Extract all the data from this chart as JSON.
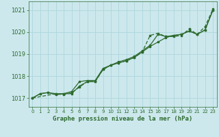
{
  "title": "Graphe pression niveau de la mer (hPa)",
  "bg_color": "#cce8ed",
  "grid_color": "#b0d8de",
  "line_color": "#2d6a2d",
  "xlim": [
    -0.5,
    23.5
  ],
  "ylim": [
    1016.6,
    1021.4
  ],
  "yticks": [
    1017,
    1018,
    1019,
    1020,
    1021
  ],
  "xticks": [
    0,
    1,
    2,
    3,
    4,
    5,
    6,
    7,
    8,
    9,
    10,
    11,
    12,
    13,
    14,
    15,
    16,
    17,
    18,
    19,
    20,
    21,
    22,
    23
  ],
  "series1": [
    [
      0,
      1017.0
    ],
    [
      1,
      1017.2
    ],
    [
      2,
      1017.25
    ],
    [
      3,
      1017.2
    ],
    [
      4,
      1017.2
    ],
    [
      5,
      1017.2
    ],
    [
      6,
      1017.55
    ],
    [
      7,
      1017.75
    ],
    [
      8,
      1017.75
    ],
    [
      9,
      1018.3
    ],
    [
      10,
      1018.5
    ],
    [
      11,
      1018.6
    ],
    [
      12,
      1018.7
    ],
    [
      13,
      1018.85
    ],
    [
      14,
      1019.1
    ],
    [
      15,
      1019.35
    ],
    [
      16,
      1019.55
    ],
    [
      17,
      1019.75
    ],
    [
      18,
      1019.85
    ],
    [
      19,
      1019.9
    ],
    [
      20,
      1020.05
    ],
    [
      21,
      1019.9
    ],
    [
      22,
      1020.1
    ],
    [
      23,
      1021.0
    ]
  ],
  "series2": [
    [
      0,
      1017.0
    ],
    [
      1,
      1017.2
    ],
    [
      2,
      1017.25
    ],
    [
      3,
      1017.15
    ],
    [
      4,
      1017.2
    ],
    [
      5,
      1017.3
    ],
    [
      6,
      1017.75
    ],
    [
      7,
      1017.8
    ],
    [
      8,
      1017.8
    ],
    [
      9,
      1018.35
    ],
    [
      10,
      1018.5
    ],
    [
      11,
      1018.65
    ],
    [
      12,
      1018.75
    ],
    [
      13,
      1018.9
    ],
    [
      14,
      1019.15
    ],
    [
      15,
      1019.4
    ],
    [
      16,
      1019.9
    ],
    [
      17,
      1019.8
    ],
    [
      18,
      1019.85
    ],
    [
      19,
      1019.9
    ],
    [
      20,
      1020.05
    ],
    [
      21,
      1019.9
    ],
    [
      22,
      1020.1
    ],
    [
      23,
      1021.0
    ]
  ],
  "series3": [
    [
      0,
      1017.0
    ],
    [
      3,
      1017.2
    ],
    [
      4,
      1017.15
    ],
    [
      5,
      1017.25
    ],
    [
      6,
      1017.5
    ],
    [
      7,
      1017.75
    ],
    [
      8,
      1017.75
    ],
    [
      9,
      1018.3
    ],
    [
      10,
      1018.5
    ],
    [
      11,
      1018.6
    ],
    [
      12,
      1018.7
    ],
    [
      13,
      1018.85
    ],
    [
      14,
      1019.1
    ],
    [
      15,
      1019.85
    ],
    [
      16,
      1019.95
    ],
    [
      17,
      1019.8
    ],
    [
      18,
      1019.8
    ],
    [
      19,
      1019.85
    ],
    [
      20,
      1020.15
    ],
    [
      21,
      1019.9
    ],
    [
      22,
      1020.25
    ],
    [
      23,
      1021.05
    ]
  ]
}
